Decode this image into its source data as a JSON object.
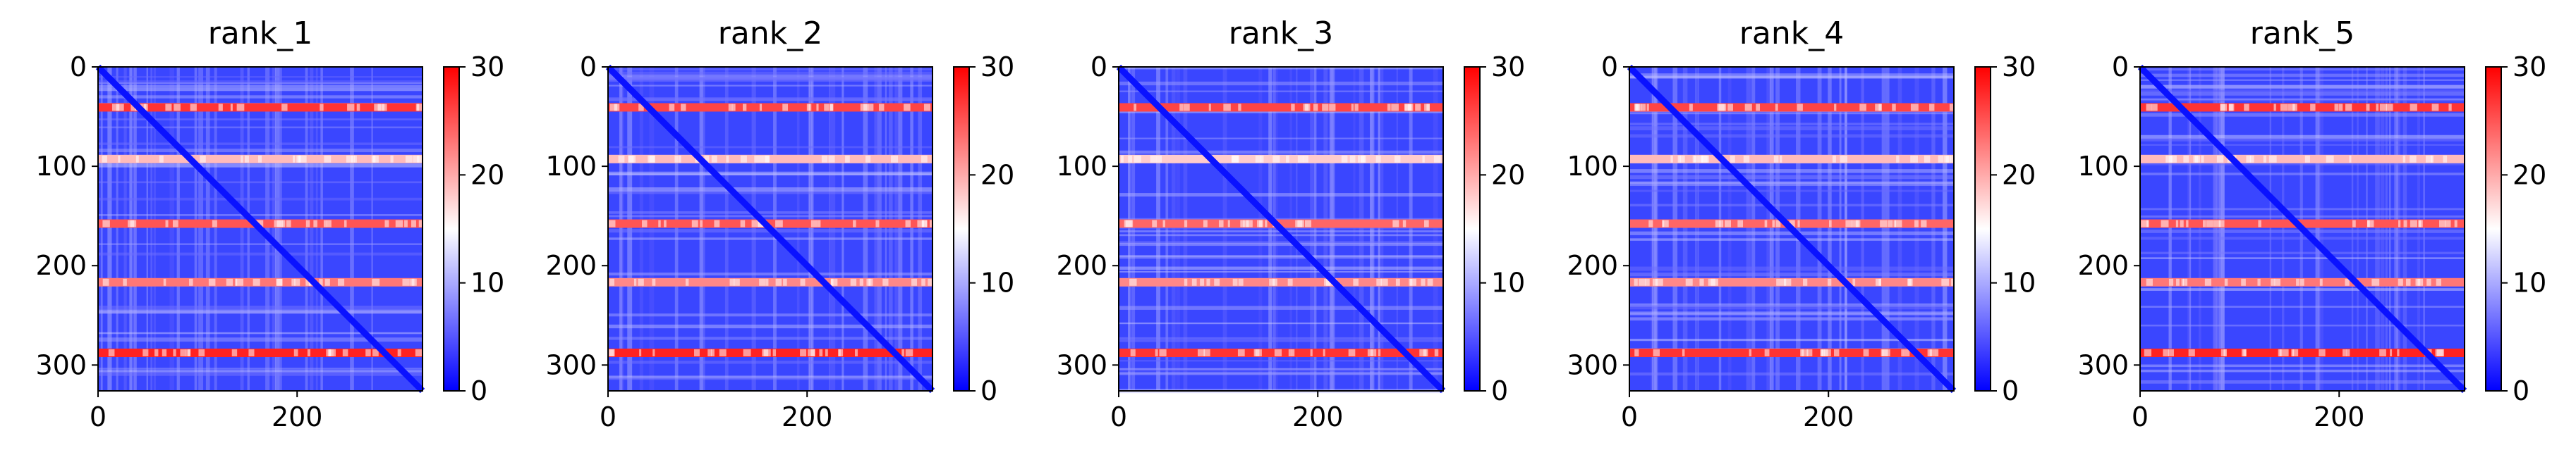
{
  "figure": {
    "titles": [
      "rank_1",
      "rank_2",
      "rank_3",
      "rank_4",
      "rank_5"
    ]
  },
  "chart_data": [
    {
      "type": "heatmap",
      "title": "rank_1",
      "xlabel": "",
      "ylabel": "",
      "x_ticks": [
        0,
        200
      ],
      "y_ticks": [
        0,
        100,
        200,
        300
      ],
      "xlim": [
        0,
        326
      ],
      "ylim": [
        326,
        0
      ],
      "colorbar": {
        "ticks": [
          0,
          10,
          20,
          30
        ],
        "range": [
          0,
          30
        ],
        "colormap": "bwr"
      },
      "row_bands": [
        {
          "row": 40,
          "value": 27
        },
        {
          "row": 92,
          "value": 19
        },
        {
          "row": 157,
          "value": 25
        },
        {
          "row": 216,
          "value": 23
        },
        {
          "row": 287,
          "value": 28
        }
      ]
    },
    {
      "type": "heatmap",
      "title": "rank_2",
      "xlabel": "",
      "ylabel": "",
      "x_ticks": [
        0,
        200
      ],
      "y_ticks": [
        0,
        100,
        200,
        300
      ],
      "xlim": [
        0,
        326
      ],
      "ylim": [
        326,
        0
      ],
      "colorbar": {
        "ticks": [
          0,
          10,
          20,
          30
        ],
        "range": [
          0,
          30
        ],
        "colormap": "bwr"
      },
      "row_bands": [
        {
          "row": 40,
          "value": 26
        },
        {
          "row": 92,
          "value": 19
        },
        {
          "row": 157,
          "value": 25
        },
        {
          "row": 216,
          "value": 22
        },
        {
          "row": 287,
          "value": 28
        }
      ]
    },
    {
      "type": "heatmap",
      "title": "rank_3",
      "xlabel": "",
      "ylabel": "",
      "x_ticks": [
        0,
        200
      ],
      "y_ticks": [
        0,
        100,
        200,
        300
      ],
      "xlim": [
        0,
        326
      ],
      "ylim": [
        326,
        0
      ],
      "colorbar": {
        "ticks": [
          0,
          10,
          20,
          30
        ],
        "range": [
          0,
          30
        ],
        "colormap": "bwr"
      },
      "row_bands": [
        {
          "row": 40,
          "value": 26
        },
        {
          "row": 92,
          "value": 18
        },
        {
          "row": 157,
          "value": 24
        },
        {
          "row": 216,
          "value": 22
        },
        {
          "row": 287,
          "value": 27
        }
      ]
    },
    {
      "type": "heatmap",
      "title": "rank_4",
      "xlabel": "",
      "ylabel": "",
      "x_ticks": [
        0,
        200
      ],
      "y_ticks": [
        0,
        100,
        200,
        300
      ],
      "xlim": [
        0,
        326
      ],
      "ylim": [
        326,
        0
      ],
      "colorbar": {
        "ticks": [
          0,
          10,
          20,
          30
        ],
        "range": [
          0,
          30
        ],
        "colormap": "bwr"
      },
      "row_bands": [
        {
          "row": 40,
          "value": 26
        },
        {
          "row": 92,
          "value": 19
        },
        {
          "row": 157,
          "value": 24
        },
        {
          "row": 216,
          "value": 22
        },
        {
          "row": 287,
          "value": 27
        }
      ]
    },
    {
      "type": "heatmap",
      "title": "rank_5",
      "xlabel": "",
      "ylabel": "",
      "x_ticks": [
        0,
        200
      ],
      "y_ticks": [
        0,
        100,
        200,
        300
      ],
      "xlim": [
        0,
        326
      ],
      "ylim": [
        326,
        0
      ],
      "colorbar": {
        "ticks": [
          0,
          10,
          20,
          30
        ],
        "range": [
          0,
          30
        ],
        "colormap": "bwr"
      },
      "row_bands": [
        {
          "row": 40,
          "value": 27
        },
        {
          "row": 92,
          "value": 19
        },
        {
          "row": 157,
          "value": 25
        },
        {
          "row": 216,
          "value": 23
        },
        {
          "row": 287,
          "value": 28
        }
      ]
    }
  ]
}
